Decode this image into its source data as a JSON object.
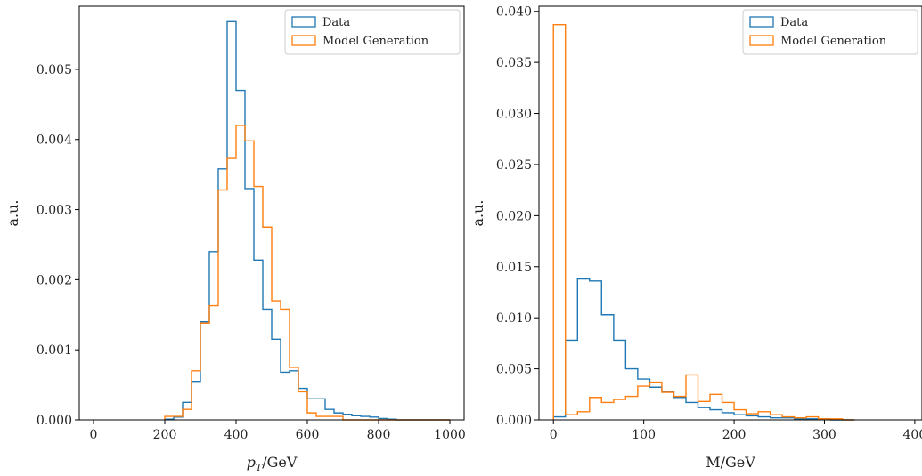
{
  "chart_data": [
    {
      "type": "histogram-step",
      "xlabel_base": "p",
      "xlabel_sub": "T",
      "xlabel_rest": "/GeV",
      "ylabel": "a.u.",
      "xlim": [
        -40,
        1040
      ],
      "ylim": [
        0,
        0.0059
      ],
      "xticks": [
        0,
        200,
        400,
        600,
        800,
        1000
      ],
      "xtick_labels": [
        "0",
        "200",
        "400",
        "600",
        "800",
        "1000"
      ],
      "yticks": [
        0,
        0.001,
        0.002,
        0.003,
        0.004,
        0.005
      ],
      "ytick_labels": [
        "0.000",
        "0.001",
        "0.002",
        "0.003",
        "0.004",
        "0.005"
      ],
      "legend_position": "top-right",
      "series": [
        {
          "name": "Data",
          "color": "#1f77b4",
          "edges": [
            200,
            225,
            250,
            275,
            300,
            325,
            350,
            375,
            400,
            425,
            450,
            475,
            500,
            525,
            550,
            575,
            600,
            625,
            650,
            675,
            700,
            725,
            750,
            775,
            800,
            825,
            850,
            875,
            900,
            925,
            950,
            975,
            1000
          ],
          "values": [
            1e-05,
            4e-05,
            0.00025,
            0.00055,
            0.0014,
            0.0024,
            0.00358,
            0.00568,
            0.0047,
            0.0033,
            0.00228,
            0.00158,
            0.00115,
            0.00068,
            0.0007,
            0.00045,
            0.0003,
            0.0003,
            0.00015,
            0.0001,
            8e-05,
            6e-05,
            5e-05,
            4e-05,
            2e-05,
            1e-05,
            0.0,
            0.0,
            0.0,
            0.0,
            0.0,
            0.0
          ]
        },
        {
          "name": "Model Generation",
          "color": "#ff7f0e",
          "edges": [
            200,
            225,
            250,
            275,
            300,
            325,
            350,
            375,
            400,
            425,
            450,
            475,
            500,
            525,
            550,
            575,
            600,
            625,
            650,
            675,
            700,
            725,
            750,
            775,
            800,
            825,
            850,
            875,
            900,
            925,
            950,
            975,
            1000
          ],
          "values": [
            5e-05,
            5e-05,
            0.00015,
            0.0007,
            0.00138,
            0.00163,
            0.00328,
            0.00373,
            0.0042,
            0.00398,
            0.00333,
            0.00275,
            0.0017,
            0.00158,
            0.00075,
            0.0004,
            0.0001,
            5e-05,
            5e-05,
            5e-05,
            0.0,
            0.0,
            0.0,
            0.0,
            0.0,
            0.0,
            0.0,
            0.0,
            0.0,
            0.0,
            0.0,
            0.0
          ]
        }
      ]
    },
    {
      "type": "histogram-step",
      "xlabel": "M/GeV",
      "ylabel": "a.u.",
      "xlim": [
        -16,
        408
      ],
      "ylim": [
        0,
        0.0405
      ],
      "xticks": [
        0,
        100,
        200,
        300,
        400
      ],
      "xtick_labels": [
        "0",
        "100",
        "200",
        "300",
        "400"
      ],
      "yticks": [
        0,
        0.005,
        0.01,
        0.015,
        0.02,
        0.025,
        0.03,
        0.035,
        0.04
      ],
      "ytick_labels": [
        "0.000",
        "0.005",
        "0.010",
        "0.015",
        "0.020",
        "0.025",
        "0.030",
        "0.035",
        "0.040"
      ],
      "legend_position": "top-right",
      "series": [
        {
          "name": "Data",
          "color": "#1f77b4",
          "edges": [
            0,
            13.3,
            26.7,
            40,
            53.3,
            66.7,
            80,
            93.3,
            106.7,
            120,
            133.3,
            146.7,
            160,
            173.3,
            186.7,
            200,
            213.3,
            226.7,
            240,
            253.3,
            266.7,
            280,
            293.3,
            306.7,
            320,
            333.3
          ],
          "values": [
            0.0003,
            0.0078,
            0.0138,
            0.0136,
            0.0103,
            0.0078,
            0.005,
            0.004,
            0.0032,
            0.0028,
            0.0022,
            0.0017,
            0.0012,
            0.001,
            0.0007,
            0.0005,
            0.0004,
            0.0003,
            0.0002,
            0.0002,
            0.0001,
            0.0001,
            0.0001,
            0.0,
            0.0
          ]
        },
        {
          "name": "Model Generation",
          "color": "#ff7f0e",
          "edges": [
            0,
            13.3,
            26.7,
            40,
            53.3,
            66.7,
            80,
            93.3,
            106.7,
            120,
            133.3,
            146.7,
            160,
            173.3,
            186.7,
            200,
            213.3,
            226.7,
            240,
            253.3,
            266.7,
            280,
            293.3,
            306.7,
            320,
            333.3
          ],
          "values": [
            0.0387,
            0.0005,
            0.0008,
            0.0022,
            0.0017,
            0.002,
            0.0023,
            0.0033,
            0.0037,
            0.0027,
            0.0023,
            0.0044,
            0.0018,
            0.0025,
            0.0017,
            0.001,
            0.0006,
            0.0008,
            0.0005,
            0.0003,
            0.0002,
            0.0003,
            0.0001,
            0.0001,
            0.0
          ]
        }
      ]
    }
  ]
}
